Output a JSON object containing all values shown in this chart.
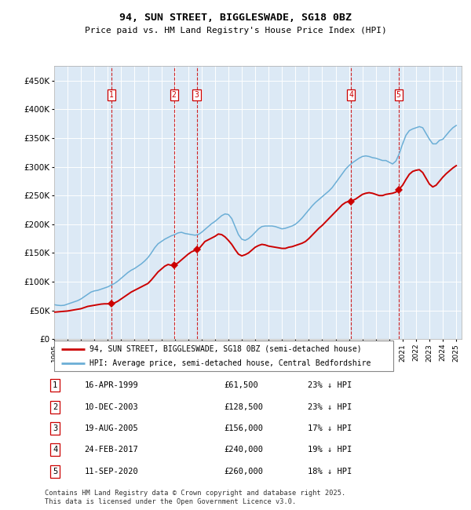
{
  "title_line1": "94, SUN STREET, BIGGLESWADE, SG18 0BZ",
  "title_line2": "Price paid vs. HM Land Registry's House Price Index (HPI)",
  "background_color": "#ffffff",
  "plot_bg_color": "#dce9f5",
  "hpi_line_color": "#6baed6",
  "price_line_color": "#cc0000",
  "marker_color": "#cc0000",
  "vline_color": "#cc0000",
  "ylim": [
    0,
    475000
  ],
  "yticks": [
    0,
    50000,
    100000,
    150000,
    200000,
    250000,
    300000,
    350000,
    400000,
    450000
  ],
  "ytick_labels": [
    "£0",
    "£50K",
    "£100K",
    "£150K",
    "£200K",
    "£250K",
    "£300K",
    "£350K",
    "£400K",
    "£450K"
  ],
  "transactions": [
    {
      "num": 1,
      "date": "1999-04-16",
      "price": 61500,
      "pct": "23%",
      "dir": "↓",
      "date_label": "16-APR-1999",
      "price_label": "£61,500"
    },
    {
      "num": 2,
      "date": "2003-12-10",
      "price": 128500,
      "pct": "23%",
      "dir": "↓",
      "date_label": "10-DEC-2003",
      "price_label": "£128,500"
    },
    {
      "num": 3,
      "date": "2005-08-19",
      "price": 156000,
      "pct": "17%",
      "dir": "↓",
      "date_label": "19-AUG-2005",
      "price_label": "£156,000"
    },
    {
      "num": 4,
      "date": "2017-02-24",
      "price": 240000,
      "pct": "19%",
      "dir": "↓",
      "date_label": "24-FEB-2017",
      "price_label": "£240,000"
    },
    {
      "num": 5,
      "date": "2020-09-11",
      "price": 260000,
      "pct": "18%",
      "dir": "↓",
      "date_label": "11-SEP-2020",
      "price_label": "£260,000"
    }
  ],
  "legend_label_price": "94, SUN STREET, BIGGLESWADE, SG18 0BZ (semi-detached house)",
  "legend_label_hpi": "HPI: Average price, semi-detached house, Central Bedfordshire",
  "footer": "Contains HM Land Registry data © Crown copyright and database right 2025.\nThis data is licensed under the Open Government Licence v3.0.",
  "hpi_data_x": [
    1995.0,
    1995.25,
    1995.5,
    1995.75,
    1996.0,
    1996.25,
    1996.5,
    1996.75,
    1997.0,
    1997.25,
    1997.5,
    1997.75,
    1998.0,
    1998.25,
    1998.5,
    1998.75,
    1999.0,
    1999.25,
    1999.5,
    1999.75,
    2000.0,
    2000.25,
    2000.5,
    2000.75,
    2001.0,
    2001.25,
    2001.5,
    2001.75,
    2002.0,
    2002.25,
    2002.5,
    2002.75,
    2003.0,
    2003.25,
    2003.5,
    2003.75,
    2004.0,
    2004.25,
    2004.5,
    2004.75,
    2005.0,
    2005.25,
    2005.5,
    2005.75,
    2006.0,
    2006.25,
    2006.5,
    2006.75,
    2007.0,
    2007.25,
    2007.5,
    2007.75,
    2008.0,
    2008.25,
    2008.5,
    2008.75,
    2009.0,
    2009.25,
    2009.5,
    2009.75,
    2010.0,
    2010.25,
    2010.5,
    2010.75,
    2011.0,
    2011.25,
    2011.5,
    2011.75,
    2012.0,
    2012.25,
    2012.5,
    2012.75,
    2013.0,
    2013.25,
    2013.5,
    2013.75,
    2014.0,
    2014.25,
    2014.5,
    2014.75,
    2015.0,
    2015.25,
    2015.5,
    2015.75,
    2016.0,
    2016.25,
    2016.5,
    2016.75,
    2017.0,
    2017.25,
    2017.5,
    2017.75,
    2018.0,
    2018.25,
    2018.5,
    2018.75,
    2019.0,
    2019.25,
    2019.5,
    2019.75,
    2020.0,
    2020.25,
    2020.5,
    2020.75,
    2021.0,
    2021.25,
    2021.5,
    2021.75,
    2022.0,
    2022.25,
    2022.5,
    2022.75,
    2023.0,
    2023.25,
    2023.5,
    2023.75,
    2024.0,
    2024.25,
    2024.5,
    2024.75,
    2025.0
  ],
  "hpi_data_y": [
    60000,
    59000,
    58500,
    59000,
    61000,
    63000,
    65000,
    67000,
    70000,
    74000,
    78000,
    82000,
    84000,
    85000,
    87000,
    89000,
    91000,
    94000,
    97000,
    101000,
    106000,
    111000,
    116000,
    120000,
    123000,
    127000,
    131000,
    136000,
    142000,
    150000,
    159000,
    166000,
    170000,
    174000,
    177000,
    180000,
    182000,
    185000,
    186000,
    184000,
    183000,
    182000,
    181000,
    182000,
    186000,
    191000,
    196000,
    201000,
    205000,
    210000,
    215000,
    218000,
    217000,
    210000,
    196000,
    182000,
    174000,
    172000,
    175000,
    180000,
    186000,
    192000,
    196000,
    197000,
    197000,
    197000,
    196000,
    194000,
    192000,
    193000,
    195000,
    197000,
    200000,
    205000,
    211000,
    218000,
    225000,
    232000,
    238000,
    243000,
    248000,
    253000,
    258000,
    264000,
    272000,
    280000,
    288000,
    296000,
    302000,
    307000,
    311000,
    315000,
    318000,
    319000,
    318000,
    316000,
    315000,
    313000,
    311000,
    311000,
    308000,
    305000,
    310000,
    323000,
    340000,
    355000,
    363000,
    366000,
    368000,
    370000,
    368000,
    358000,
    348000,
    340000,
    340000,
    346000,
    348000,
    355000,
    362000,
    368000,
    372000
  ],
  "price_line_x": [
    1995.0,
    1995.25,
    1995.5,
    1995.75,
    1996.0,
    1996.25,
    1996.5,
    1996.75,
    1997.0,
    1997.25,
    1997.5,
    1997.75,
    1998.0,
    1998.25,
    1998.5,
    1998.75,
    1999.33,
    1999.5,
    1999.75,
    2000.0,
    2000.25,
    2000.5,
    2000.75,
    2001.0,
    2001.25,
    2001.5,
    2001.75,
    2002.0,
    2002.25,
    2002.5,
    2002.75,
    2003.0,
    2003.25,
    2003.5,
    2003.75,
    2003.95,
    2004.25,
    2004.5,
    2004.75,
    2005.0,
    2005.25,
    2005.65,
    2005.75,
    2006.0,
    2006.25,
    2006.5,
    2006.75,
    2007.0,
    2007.25,
    2007.5,
    2007.75,
    2008.0,
    2008.25,
    2008.5,
    2008.75,
    2009.0,
    2009.25,
    2009.5,
    2009.75,
    2010.0,
    2010.25,
    2010.5,
    2010.75,
    2011.0,
    2011.25,
    2011.5,
    2011.75,
    2012.0,
    2012.25,
    2012.5,
    2012.75,
    2013.0,
    2013.25,
    2013.5,
    2013.75,
    2014.0,
    2014.25,
    2014.5,
    2014.75,
    2015.0,
    2015.25,
    2015.5,
    2015.75,
    2016.0,
    2016.25,
    2016.5,
    2016.75,
    2017.0,
    2017.15,
    2017.5,
    2017.75,
    2018.0,
    2018.25,
    2018.5,
    2018.75,
    2019.0,
    2019.25,
    2019.5,
    2019.75,
    2020.0,
    2020.25,
    2020.5,
    2020.7,
    2021.0,
    2021.25,
    2021.5,
    2021.75,
    2022.0,
    2022.25,
    2022.5,
    2022.75,
    2023.0,
    2023.25,
    2023.5,
    2023.75,
    2024.0,
    2024.25,
    2024.5,
    2024.75,
    2025.0
  ],
  "price_line_y": [
    47000,
    47500,
    48000,
    48500,
    49000,
    50000,
    51000,
    52000,
    53000,
    55000,
    57000,
    58000,
    59000,
    60000,
    61000,
    61500,
    61500,
    63000,
    66000,
    70000,
    74000,
    78000,
    82000,
    85000,
    88000,
    91000,
    94000,
    97000,
    103000,
    110000,
    117000,
    122000,
    127000,
    130000,
    128500,
    128500,
    133000,
    138000,
    143000,
    148000,
    152000,
    156000,
    156000,
    163000,
    170000,
    173000,
    176000,
    179000,
    183000,
    182000,
    178000,
    172000,
    165000,
    156000,
    148000,
    145000,
    147000,
    150000,
    155000,
    160000,
    163000,
    165000,
    164000,
    162000,
    161000,
    160000,
    159000,
    158000,
    158000,
    160000,
    161000,
    163000,
    165000,
    167000,
    170000,
    175000,
    181000,
    187000,
    193000,
    198000,
    204000,
    210000,
    216000,
    222000,
    228000,
    234000,
    238000,
    240000,
    240000,
    244000,
    248000,
    252000,
    254000,
    255000,
    254000,
    252000,
    250000,
    250000,
    252000,
    253000,
    254000,
    256000,
    260000,
    268000,
    278000,
    287000,
    292000,
    294000,
    295000,
    290000,
    280000,
    270000,
    265000,
    268000,
    275000,
    282000,
    288000,
    293000,
    298000,
    302000
  ]
}
